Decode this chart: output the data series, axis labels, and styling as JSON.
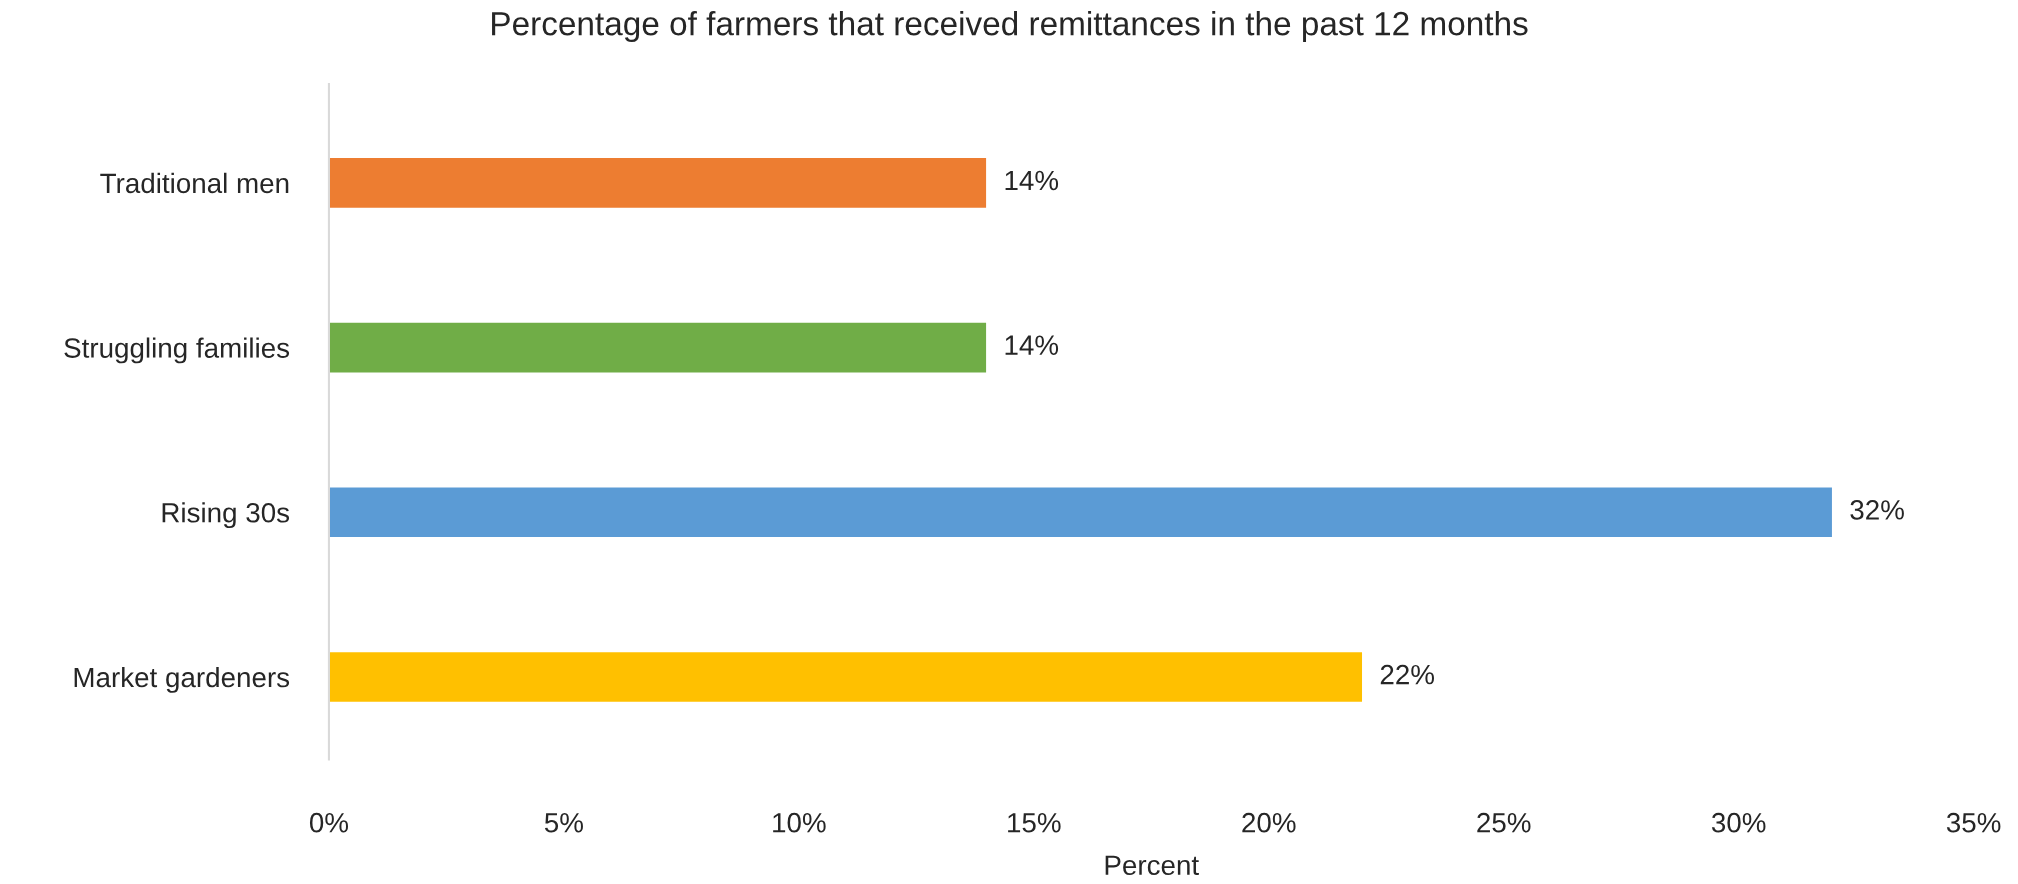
{
  "chart_data": {
    "type": "bar",
    "orientation": "horizontal",
    "title": "Percentage of farmers that received remittances in the past 12 months",
    "xlabel": "Percent",
    "categories": [
      "Traditional men",
      "Struggling families",
      "Rising 30s",
      "Market gardeners"
    ],
    "values": [
      14,
      14,
      32,
      22
    ],
    "colors": [
      "#ed7d31",
      "#70ad47",
      "#5b9bd5",
      "#ffc000"
    ],
    "value_labels": [
      "14%",
      "14%",
      "32%",
      "22%"
    ],
    "xlim": [
      0,
      35
    ],
    "xticks": [
      {
        "value": 0,
        "label": "0%"
      },
      {
        "value": 5,
        "label": "5%"
      },
      {
        "value": 10,
        "label": "10%"
      },
      {
        "value": 15,
        "label": "15%"
      },
      {
        "value": 20,
        "label": "20%"
      },
      {
        "value": 25,
        "label": "25%"
      },
      {
        "value": 30,
        "label": "30%"
      },
      {
        "value": 35,
        "label": "35%"
      }
    ],
    "grid": false
  }
}
